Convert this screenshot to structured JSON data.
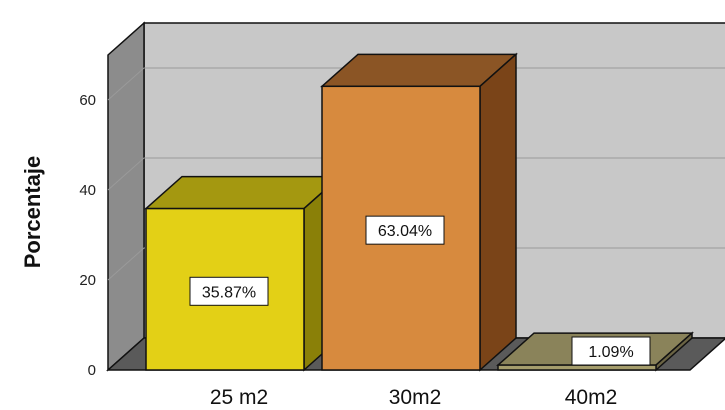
{
  "chart_data": {
    "type": "bar",
    "categories": [
      "25 m2",
      "30m2",
      "40m2"
    ],
    "values": [
      35.87,
      63.04,
      1.09
    ],
    "data_labels": [
      "35.87%",
      "63.04%",
      "1.09%"
    ],
    "ylabel": "Porcentaje",
    "xlabel": "",
    "ylim": [
      0,
      70
    ],
    "yticks": [
      0,
      20,
      40,
      60
    ],
    "style": "3d",
    "grid": true,
    "colors": {
      "front": [
        "#e3d016",
        "#d78a3e",
        "#a59d6c"
      ],
      "top": [
        "#a49810",
        "#8b5525",
        "#8a835a"
      ],
      "side": [
        "#8a8008",
        "#7a4418",
        "#6b6444"
      ],
      "wall": "#c8c8c8",
      "left_wall": "#8c8c8c",
      "floor": "#5a5a5a"
    }
  }
}
